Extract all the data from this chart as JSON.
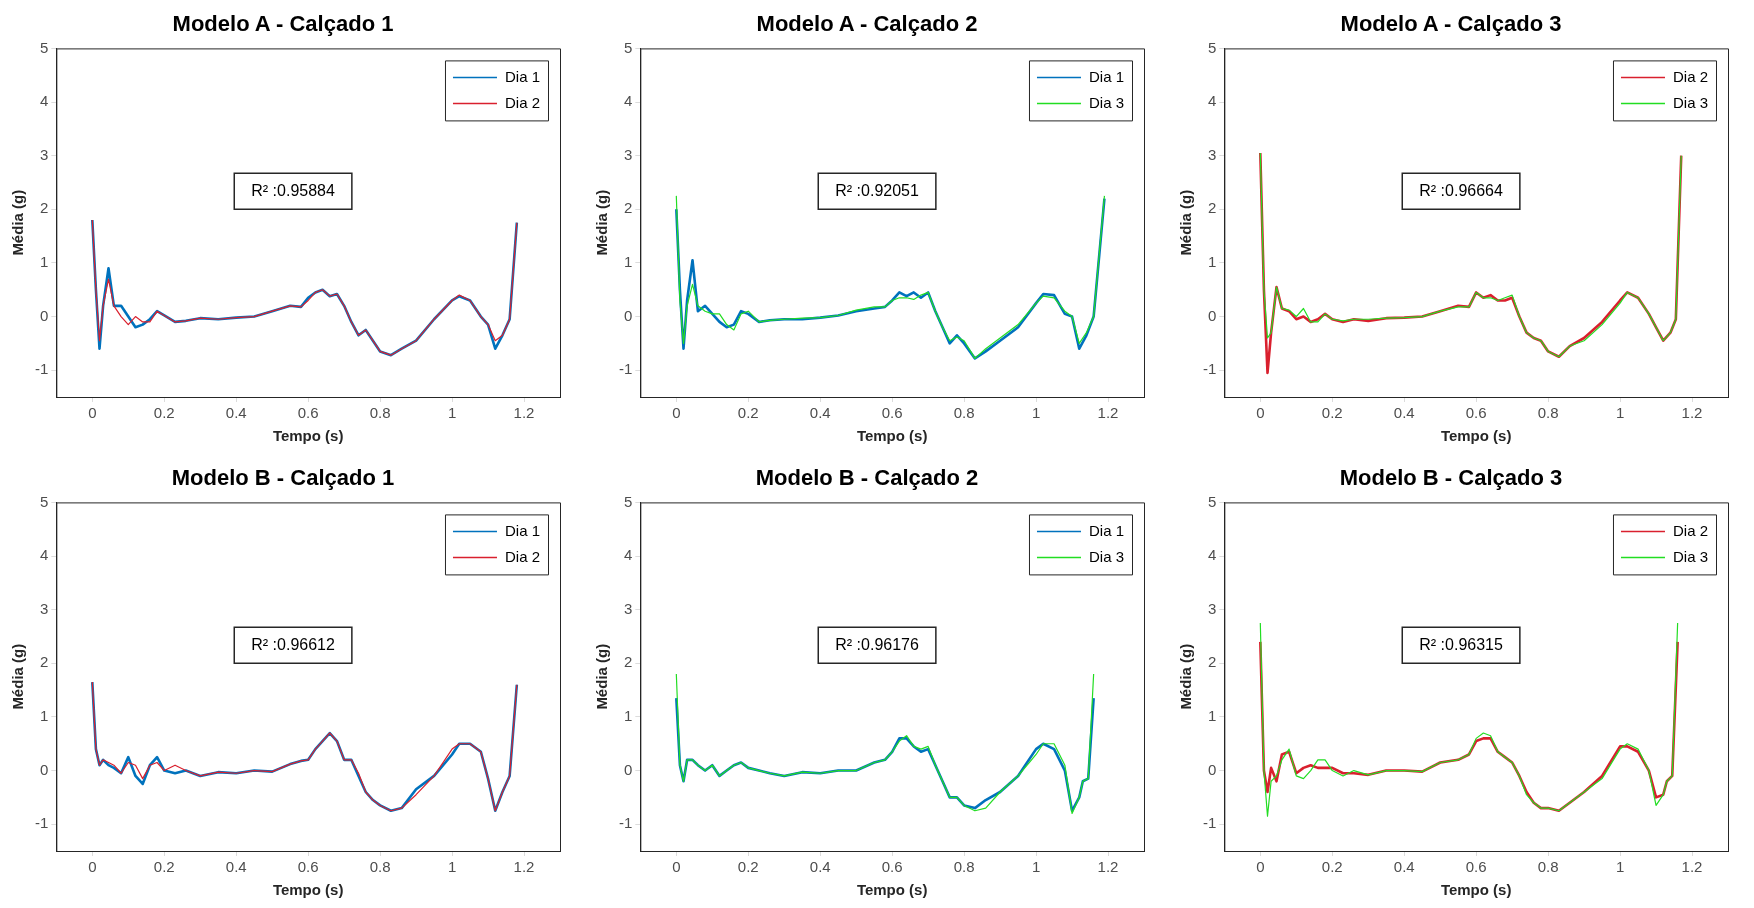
{
  "chart_data": [
    {
      "type": "line",
      "title": "Modelo A - Calçado 1",
      "xlabel": "Tempo (s)",
      "ylabel": "Média (g)",
      "xlim": [
        -0.1,
        1.3
      ],
      "xticks": [
        0,
        0.2,
        0.4,
        0.6,
        0.8,
        1,
        1.2
      ],
      "ylim": [
        -1.5,
        5
      ],
      "yticks": [
        -1,
        0,
        1,
        2,
        3,
        4,
        5
      ],
      "legend": "top right",
      "marker": "none",
      "annotations": [
        "R² :0.95884"
      ],
      "x": [
        0,
        0.01,
        0.02,
        0.03,
        0.045,
        0.06,
        0.08,
        0.1,
        0.12,
        0.14,
        0.16,
        0.18,
        0.2,
        0.23,
        0.26,
        0.3,
        0.35,
        0.4,
        0.45,
        0.5,
        0.55,
        0.58,
        0.6,
        0.62,
        0.64,
        0.66,
        0.68,
        0.7,
        0.72,
        0.74,
        0.76,
        0.78,
        0.8,
        0.83,
        0.86,
        0.9,
        0.95,
        1,
        1.02,
        1.05,
        1.08,
        1.1,
        1.12,
        1.14,
        1.16,
        1.18
      ],
      "series": [
        {
          "name": "Dia 1",
          "color": "#0072bd",
          "values": [
            1.8,
            0.5,
            -0.6,
            0.2,
            0.9,
            0.2,
            0.2,
            0,
            -0.2,
            -0.15,
            -0.05,
            0.1,
            0.02,
            -0.1,
            -0.08,
            -0.03,
            -0.05,
            -0.02,
            0,
            0.1,
            0.2,
            0.18,
            0.35,
            0.45,
            0.5,
            0.38,
            0.42,
            0.2,
            -0.1,
            -0.35,
            -0.25,
            -0.45,
            -0.65,
            -0.72,
            -0.6,
            -0.45,
            -0.05,
            0.3,
            0.38,
            0.3,
            0,
            -0.15,
            -0.6,
            -0.35,
            -0.05,
            1.75
          ]
        },
        {
          "name": "Dia 2",
          "color": "#d9202e",
          "values": [
            1.8,
            0.5,
            -0.45,
            0.2,
            0.7,
            0.2,
            0,
            -0.15,
            0,
            -0.1,
            -0.1,
            0.1,
            0.02,
            -0.1,
            -0.08,
            -0.03,
            -0.05,
            -0.02,
            0,
            0.1,
            0.2,
            0.18,
            0.3,
            0.45,
            0.5,
            0.38,
            0.42,
            0.2,
            -0.1,
            -0.35,
            -0.25,
            -0.45,
            -0.65,
            -0.72,
            -0.6,
            -0.45,
            -0.05,
            0.3,
            0.4,
            0.3,
            0,
            -0.15,
            -0.45,
            -0.35,
            -0.05,
            1.75
          ]
        }
      ]
    },
    {
      "type": "line",
      "title": "Modelo A - Calçado 2",
      "xlabel": "Tempo (s)",
      "ylabel": "Média (g)",
      "xlim": [
        -0.1,
        1.3
      ],
      "xticks": [
        0,
        0.2,
        0.4,
        0.6,
        0.8,
        1,
        1.2
      ],
      "ylim": [
        -1.5,
        5
      ],
      "yticks": [
        -1,
        0,
        1,
        2,
        3,
        4,
        5
      ],
      "legend": "top right",
      "marker": "none",
      "annotations": [
        "R² :0.92051"
      ],
      "x": [
        0,
        0.01,
        0.02,
        0.03,
        0.045,
        0.06,
        0.08,
        0.1,
        0.12,
        0.14,
        0.16,
        0.18,
        0.2,
        0.23,
        0.26,
        0.3,
        0.35,
        0.4,
        0.45,
        0.5,
        0.55,
        0.58,
        0.6,
        0.62,
        0.64,
        0.66,
        0.68,
        0.7,
        0.72,
        0.74,
        0.76,
        0.78,
        0.8,
        0.83,
        0.86,
        0.9,
        0.95,
        1,
        1.02,
        1.05,
        1.08,
        1.1,
        1.12,
        1.14,
        1.16,
        1.19
      ],
      "series": [
        {
          "name": "Dia 1",
          "color": "#0072bd",
          "values": [
            2.0,
            0.5,
            -0.6,
            0.3,
            1.05,
            0.1,
            0.2,
            0.05,
            -0.1,
            -0.2,
            -0.15,
            0.1,
            0.05,
            -0.1,
            -0.07,
            -0.05,
            -0.05,
            -0.02,
            0.02,
            0.1,
            0.15,
            0.18,
            0.3,
            0.45,
            0.38,
            0.45,
            0.35,
            0.45,
            0.1,
            -0.2,
            -0.5,
            -0.35,
            -0.5,
            -0.78,
            -0.65,
            -0.45,
            -0.2,
            0.25,
            0.42,
            0.4,
            0.05,
            0,
            -0.6,
            -0.35,
            0,
            2.2
          ]
        },
        {
          "name": "Dia 3",
          "color": "#22dd22",
          "values": [
            2.25,
            0.3,
            -0.5,
            0.2,
            0.6,
            0.2,
            0.1,
            0.05,
            0.05,
            -0.15,
            -0.25,
            0.05,
            0.1,
            -0.1,
            -0.07,
            -0.05,
            -0.03,
            -0.02,
            0.02,
            0.12,
            0.18,
            0.18,
            0.3,
            0.35,
            0.35,
            0.32,
            0.4,
            0.45,
            0.1,
            -0.2,
            -0.45,
            -0.38,
            -0.45,
            -0.78,
            -0.6,
            -0.4,
            -0.15,
            0.25,
            0.38,
            0.35,
            0.1,
            0,
            -0.5,
            -0.3,
            0,
            2.25
          ]
        }
      ]
    },
    {
      "type": "line",
      "title": "Modelo A - Calçado 3",
      "xlabel": "Tempo (s)",
      "ylabel": "Média (g)",
      "xlim": [
        -0.1,
        1.3
      ],
      "xticks": [
        0,
        0.2,
        0.4,
        0.6,
        0.8,
        1,
        1.2
      ],
      "ylim": [
        -1.5,
        5
      ],
      "yticks": [
        -1,
        0,
        1,
        2,
        3,
        4,
        5
      ],
      "legend": "top right",
      "marker": "none",
      "annotations": [
        "R² :0.96664"
      ],
      "x": [
        0,
        0.01,
        0.02,
        0.03,
        0.045,
        0.06,
        0.08,
        0.1,
        0.12,
        0.14,
        0.16,
        0.18,
        0.2,
        0.23,
        0.26,
        0.3,
        0.35,
        0.4,
        0.45,
        0.5,
        0.55,
        0.58,
        0.6,
        0.62,
        0.64,
        0.66,
        0.68,
        0.7,
        0.72,
        0.74,
        0.76,
        0.78,
        0.8,
        0.83,
        0.86,
        0.9,
        0.95,
        1,
        1.02,
        1.05,
        1.08,
        1.1,
        1.12,
        1.14,
        1.155,
        1.17
      ],
      "series": [
        {
          "name": "Dia 2",
          "color": "#d9202e",
          "values": [
            3.05,
            0.5,
            -1.05,
            -0.3,
            0.55,
            0.15,
            0.1,
            -0.05,
            0,
            -0.1,
            -0.05,
            0.05,
            -0.05,
            -0.1,
            -0.05,
            -0.08,
            -0.03,
            -0.02,
            0,
            0.1,
            0.2,
            0.18,
            0.45,
            0.35,
            0.4,
            0.3,
            0.3,
            0.35,
            0,
            -0.3,
            -0.4,
            -0.45,
            -0.65,
            -0.75,
            -0.55,
            -0.4,
            -0.1,
            0.3,
            0.45,
            0.35,
            0.05,
            -0.2,
            -0.45,
            -0.3,
            -0.05,
            3.0
          ]
        },
        {
          "name": "Dia 3",
          "color": "#22dd22",
          "values": [
            3.05,
            0.5,
            -0.4,
            -0.3,
            0.55,
            0.15,
            0.12,
            0,
            0.15,
            -0.1,
            -0.1,
            0.05,
            -0.05,
            -0.08,
            -0.05,
            -0.05,
            -0.03,
            -0.02,
            0,
            0.1,
            0.18,
            0.18,
            0.45,
            0.35,
            0.35,
            0.3,
            0.35,
            0.4,
            0,
            -0.3,
            -0.4,
            -0.45,
            -0.65,
            -0.75,
            -0.55,
            -0.45,
            -0.15,
            0.25,
            0.45,
            0.35,
            0.05,
            -0.2,
            -0.45,
            -0.3,
            -0.05,
            3.0
          ]
        }
      ]
    },
    {
      "type": "line",
      "title": "Modelo B - Calçado 1",
      "xlabel": "Tempo (s)",
      "ylabel": "Média (g)",
      "xlim": [
        -0.1,
        1.3
      ],
      "xticks": [
        0,
        0.2,
        0.4,
        0.6,
        0.8,
        1,
        1.2
      ],
      "ylim": [
        -1.5,
        5
      ],
      "yticks": [
        -1,
        0,
        1,
        2,
        3,
        4,
        5
      ],
      "legend": "top right",
      "marker": "none",
      "annotations": [
        "R² :0.96612"
      ],
      "x": [
        0,
        0.01,
        0.02,
        0.03,
        0.045,
        0.06,
        0.08,
        0.1,
        0.12,
        0.14,
        0.16,
        0.18,
        0.2,
        0.23,
        0.26,
        0.3,
        0.35,
        0.4,
        0.45,
        0.5,
        0.55,
        0.58,
        0.6,
        0.62,
        0.64,
        0.66,
        0.68,
        0.7,
        0.72,
        0.74,
        0.76,
        0.78,
        0.8,
        0.83,
        0.86,
        0.9,
        0.95,
        1,
        1.02,
        1.05,
        1.08,
        1.1,
        1.12,
        1.14,
        1.16,
        1.18
      ],
      "series": [
        {
          "name": "Dia 1",
          "color": "#0072bd",
          "values": [
            1.65,
            0.4,
            0.1,
            0.2,
            0.1,
            0.05,
            -0.05,
            0.25,
            -0.1,
            -0.25,
            0.1,
            0.25,
            0,
            -0.05,
            0,
            -0.1,
            -0.03,
            -0.05,
            0,
            -0.02,
            0.12,
            0.18,
            0.2,
            0.4,
            0.55,
            0.7,
            0.55,
            0.2,
            0.2,
            -0.1,
            -0.4,
            -0.55,
            -0.65,
            -0.75,
            -0.7,
            -0.35,
            -0.1,
            0.3,
            0.5,
            0.5,
            0.35,
            -0.15,
            -0.75,
            -0.4,
            -0.1,
            1.6
          ]
        },
        {
          "name": "Dia 2",
          "color": "#d9202e",
          "values": [
            1.65,
            0.4,
            0.1,
            0.2,
            0.15,
            0.1,
            -0.05,
            0.15,
            0.1,
            -0.15,
            0.1,
            0.15,
            0,
            0.1,
            0,
            -0.1,
            -0.03,
            -0.05,
            0,
            -0.02,
            0.12,
            0.18,
            0.2,
            0.4,
            0.55,
            0.7,
            0.55,
            0.2,
            0.2,
            -0.05,
            -0.4,
            -0.55,
            -0.65,
            -0.75,
            -0.7,
            -0.45,
            -0.1,
            0.4,
            0.5,
            0.5,
            0.35,
            -0.15,
            -0.75,
            -0.4,
            -0.1,
            1.6
          ]
        }
      ]
    },
    {
      "type": "line",
      "title": "Modelo B - Calçado 2",
      "xlabel": "Tempo (s)",
      "ylabel": "Média (g)",
      "xlim": [
        -0.1,
        1.3
      ],
      "xticks": [
        0,
        0.2,
        0.4,
        0.6,
        0.8,
        1,
        1.2
      ],
      "ylim": [
        -1.5,
        5
      ],
      "yticks": [
        -1,
        0,
        1,
        2,
        3,
        4,
        5
      ],
      "legend": "top right",
      "marker": "none",
      "annotations": [
        "R² :0.96176"
      ],
      "x": [
        0,
        0.01,
        0.02,
        0.03,
        0.045,
        0.06,
        0.08,
        0.1,
        0.12,
        0.14,
        0.16,
        0.18,
        0.2,
        0.23,
        0.26,
        0.3,
        0.35,
        0.4,
        0.45,
        0.5,
        0.55,
        0.58,
        0.6,
        0.62,
        0.64,
        0.66,
        0.68,
        0.7,
        0.72,
        0.74,
        0.76,
        0.78,
        0.8,
        0.83,
        0.86,
        0.9,
        0.95,
        1,
        1.02,
        1.05,
        1.08,
        1.1,
        1.12,
        1.13,
        1.145,
        1.16
      ],
      "series": [
        {
          "name": "Dia 1",
          "color": "#0072bd",
          "values": [
            1.35,
            0.1,
            -0.2,
            0.2,
            0.2,
            0.1,
            0,
            0.1,
            -0.1,
            0,
            0.1,
            0.15,
            0.05,
            0,
            -0.05,
            -0.1,
            -0.03,
            -0.05,
            0,
            0,
            0.15,
            0.2,
            0.35,
            0.6,
            0.6,
            0.45,
            0.35,
            0.4,
            0.1,
            -0.2,
            -0.5,
            -0.5,
            -0.65,
            -0.7,
            -0.55,
            -0.4,
            -0.1,
            0.4,
            0.5,
            0.4,
            0,
            -0.75,
            -0.5,
            -0.2,
            -0.15,
            1.35
          ]
        },
        {
          "name": "Dia 3",
          "color": "#22dd22",
          "values": [
            1.8,
            0.1,
            -0.2,
            0.2,
            0.2,
            0.1,
            0,
            0.1,
            -0.1,
            0,
            0.1,
            0.15,
            0.05,
            0,
            -0.05,
            -0.1,
            -0.03,
            -0.05,
            0,
            0,
            0.15,
            0.2,
            0.35,
            0.55,
            0.65,
            0.45,
            0.4,
            0.45,
            0.1,
            -0.2,
            -0.5,
            -0.5,
            -0.65,
            -0.75,
            -0.7,
            -0.4,
            -0.1,
            0.3,
            0.5,
            0.5,
            0.1,
            -0.8,
            -0.5,
            -0.2,
            -0.15,
            1.8
          ]
        }
      ]
    },
    {
      "type": "line",
      "title": "Modelo B - Calçado 3",
      "xlabel": "Tempo (s)",
      "ylabel": "Média (g)",
      "xlim": [
        -0.1,
        1.3
      ],
      "xticks": [
        0,
        0.2,
        0.4,
        0.6,
        0.8,
        1,
        1.2
      ],
      "ylim": [
        -1.5,
        5
      ],
      "yticks": [
        -1,
        0,
        1,
        2,
        3,
        4,
        5
      ],
      "legend": "top right",
      "marker": "none",
      "annotations": [
        "R² :0.96315"
      ],
      "x": [
        0,
        0.01,
        0.02,
        0.03,
        0.045,
        0.06,
        0.08,
        0.1,
        0.12,
        0.14,
        0.16,
        0.18,
        0.2,
        0.23,
        0.26,
        0.3,
        0.35,
        0.4,
        0.45,
        0.5,
        0.55,
        0.58,
        0.6,
        0.62,
        0.64,
        0.66,
        0.68,
        0.7,
        0.72,
        0.74,
        0.76,
        0.78,
        0.8,
        0.83,
        0.86,
        0.9,
        0.95,
        1,
        1.02,
        1.05,
        1.08,
        1.1,
        1.12,
        1.13,
        1.145,
        1.16
      ],
      "series": [
        {
          "name": "Dia 2",
          "color": "#d9202e",
          "values": [
            2.4,
            0,
            -0.4,
            0.05,
            -0.2,
            0.3,
            0.35,
            -0.05,
            0.05,
            0.1,
            0.05,
            0.05,
            0.05,
            -0.05,
            -0.05,
            -0.08,
            0,
            0,
            -0.02,
            0.15,
            0.2,
            0.3,
            0.55,
            0.6,
            0.6,
            0.35,
            0.25,
            0.15,
            -0.1,
            -0.4,
            -0.6,
            -0.7,
            -0.7,
            -0.75,
            -0.6,
            -0.4,
            -0.1,
            0.45,
            0.45,
            0.35,
            0,
            -0.5,
            -0.45,
            -0.2,
            -0.1,
            2.4
          ]
        },
        {
          "name": "Dia 3",
          "color": "#22dd22",
          "values": [
            2.75,
            0,
            -0.85,
            -0.2,
            -0.1,
            0.2,
            0.4,
            -0.1,
            -0.15,
            0,
            0.2,
            0.2,
            0,
            -0.1,
            0,
            -0.08,
            0,
            0,
            -0.02,
            0.15,
            0.2,
            0.3,
            0.6,
            0.7,
            0.65,
            0.35,
            0.25,
            0.15,
            -0.1,
            -0.45,
            -0.6,
            -0.7,
            -0.7,
            -0.75,
            -0.6,
            -0.4,
            -0.15,
            0.4,
            0.5,
            0.4,
            0,
            -0.65,
            -0.45,
            -0.2,
            -0.1,
            2.75
          ]
        }
      ]
    }
  ]
}
